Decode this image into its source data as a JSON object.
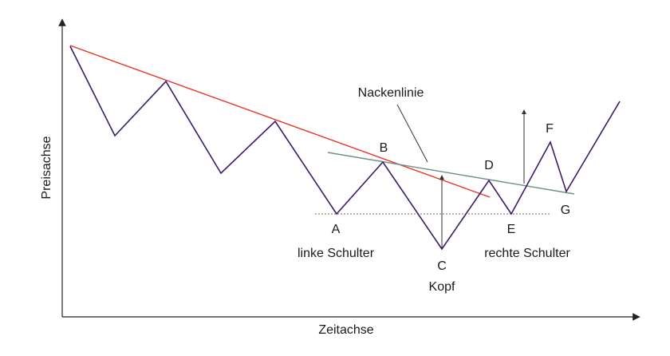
{
  "axes": {
    "x_label": "Zeitachse",
    "y_label": "Preisachse"
  },
  "annotations": {
    "neckline": "Nackenlinie",
    "left_shoulder": "linke Schulter",
    "head": "Kopf",
    "right_shoulder": "rechte Schulter"
  },
  "points": {
    "A": "A",
    "B": "B",
    "C": "C",
    "D": "D",
    "E": "E",
    "F": "F",
    "G": "G"
  },
  "colors": {
    "price_line": "#3b1a6b",
    "trend_line": "#e8352b",
    "neckline": "#6f8f84",
    "support_line": "#9a9a9a",
    "axis": "#222222"
  }
}
